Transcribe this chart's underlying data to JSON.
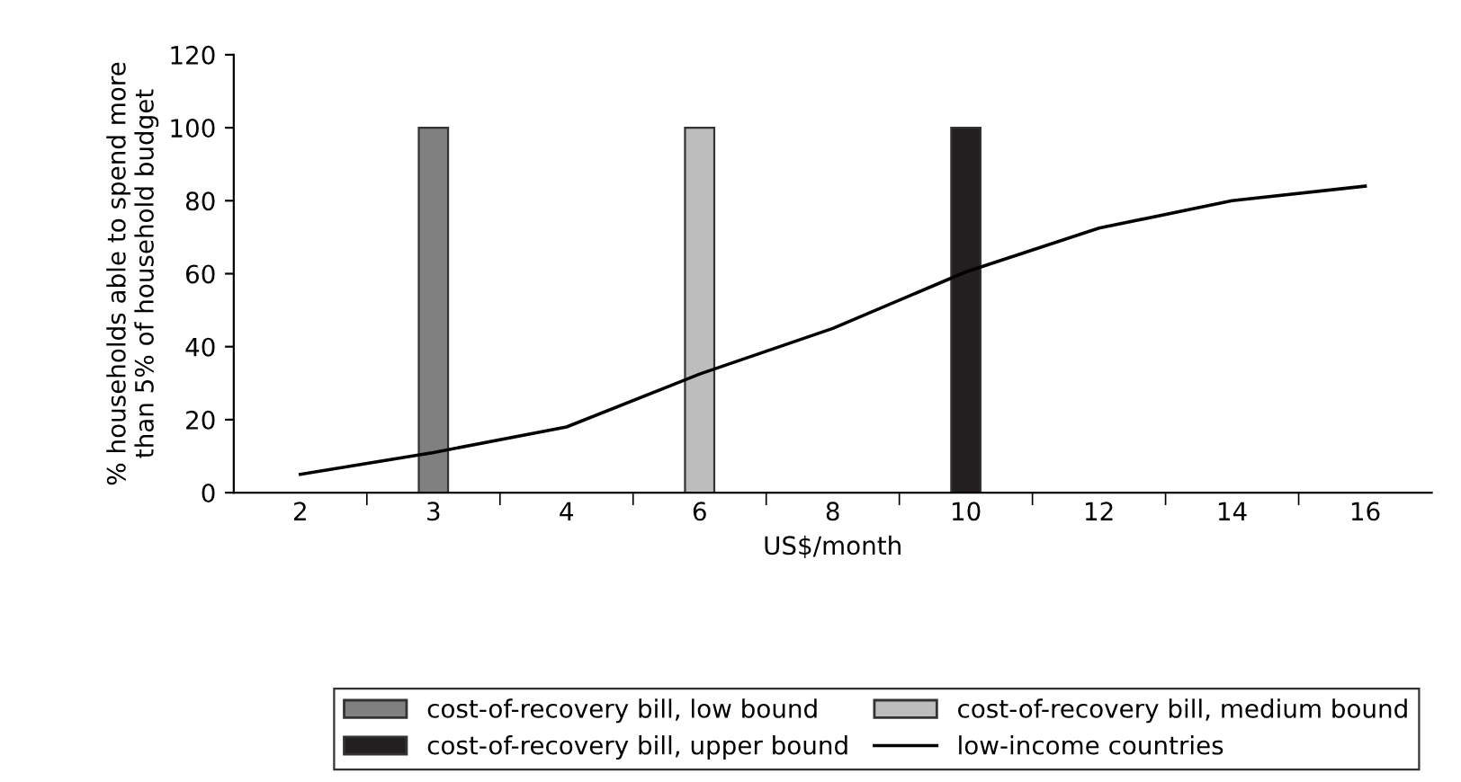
{
  "chart_data": {
    "type": "bar",
    "xlabel": "US$/month",
    "ylabel": "% households able to spend more\nthan 5% of household budget",
    "categories": [
      "2",
      "3",
      "4",
      "6",
      "8",
      "10",
      "12",
      "14",
      "16"
    ],
    "series": [
      {
        "name": "cost-of-recovery bill, low bound",
        "color": "#808080",
        "values": [
          null,
          100,
          null,
          null,
          null,
          null,
          null,
          null,
          null
        ]
      },
      {
        "name": "cost-of-recovery bill, medium bound",
        "color": "#bdbdbd",
        "values": [
          null,
          null,
          null,
          100,
          null,
          null,
          null,
          null,
          null
        ]
      },
      {
        "name": "cost-of-recovery bill, upper bound",
        "color": "#231f20",
        "values": [
          null,
          null,
          null,
          null,
          null,
          100,
          null,
          null,
          null
        ]
      },
      {
        "name": "low-income countries",
        "type": "line",
        "color": "#000000",
        "values": [
          5,
          11,
          18,
          32.5,
          45,
          60.5,
          72.5,
          80,
          84
        ]
      }
    ],
    "ylim": [
      0,
      120
    ],
    "yticks": [
      0,
      20,
      40,
      60,
      80,
      100,
      120
    ],
    "grid": false,
    "legend": "bottom",
    "marker": "none"
  }
}
